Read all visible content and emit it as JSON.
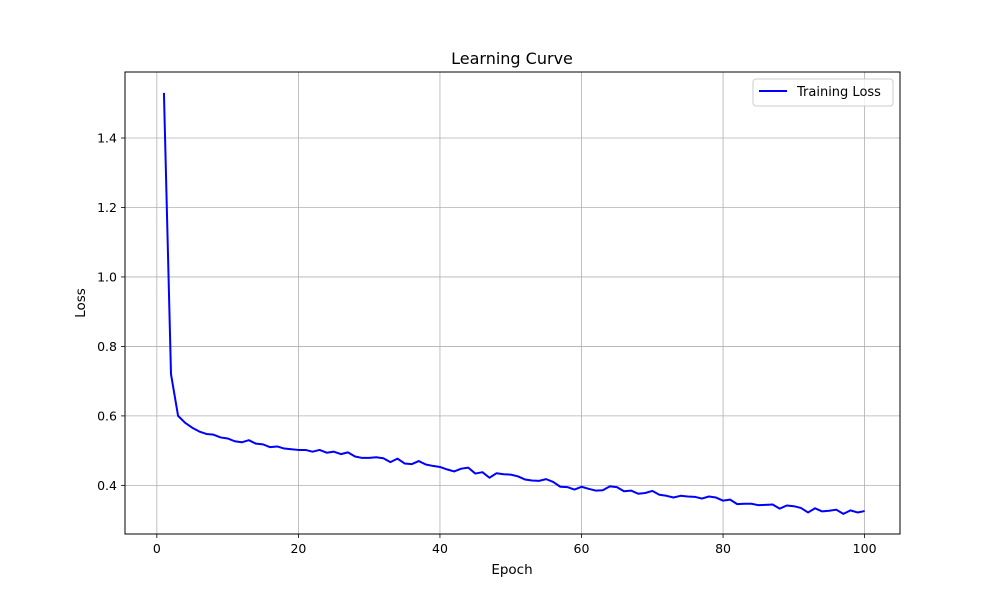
{
  "chart_data": {
    "type": "line",
    "title": "Learning Curve",
    "xlabel": "Epoch",
    "ylabel": "Loss",
    "xlim": [
      -4.5,
      105
    ],
    "ylim": [
      0.26,
      1.59
    ],
    "xticks": [
      0,
      20,
      40,
      60,
      80,
      100
    ],
    "yticks": [
      0.4,
      0.6,
      0.8,
      1.0,
      1.2,
      1.4
    ],
    "xtick_labels": [
      "0",
      "20",
      "40",
      "60",
      "80",
      "100"
    ],
    "ytick_labels": [
      "0.4",
      "0.6",
      "0.8",
      "1.0",
      "1.2",
      "1.4"
    ],
    "grid": true,
    "legend_position": "top-right",
    "series": [
      {
        "name": "Training Loss",
        "color": "#0000ff",
        "x": [
          1,
          2,
          3,
          4,
          5,
          6,
          7,
          8,
          9,
          10,
          11,
          12,
          13,
          14,
          15,
          16,
          17,
          18,
          19,
          20,
          21,
          22,
          23,
          24,
          25,
          26,
          27,
          28,
          29,
          30,
          31,
          32,
          33,
          34,
          35,
          36,
          37,
          38,
          39,
          40,
          41,
          42,
          43,
          44,
          45,
          46,
          47,
          48,
          49,
          50,
          51,
          52,
          53,
          54,
          55,
          56,
          57,
          58,
          59,
          60,
          61,
          62,
          63,
          64,
          65,
          66,
          67,
          68,
          69,
          70,
          71,
          72,
          73,
          74,
          75,
          76,
          77,
          78,
          79,
          80,
          81,
          82,
          83,
          84,
          85,
          86,
          87,
          88,
          89,
          90,
          91,
          92,
          93,
          94,
          95,
          96,
          97,
          98,
          99,
          100
        ],
        "values": [
          1.53,
          0.72,
          0.6,
          0.58,
          0.566,
          0.555,
          0.548,
          0.546,
          0.538,
          0.535,
          0.527,
          0.524,
          0.53,
          0.52,
          0.518,
          0.51,
          0.512,
          0.506,
          0.504,
          0.502,
          0.502,
          0.497,
          0.502,
          0.494,
          0.497,
          0.49,
          0.495,
          0.483,
          0.479,
          0.479,
          0.481,
          0.478,
          0.467,
          0.477,
          0.463,
          0.461,
          0.47,
          0.46,
          0.456,
          0.453,
          0.446,
          0.44,
          0.448,
          0.451,
          0.434,
          0.438,
          0.422,
          0.435,
          0.432,
          0.431,
          0.426,
          0.417,
          0.414,
          0.413,
          0.418,
          0.41,
          0.396,
          0.395,
          0.388,
          0.396,
          0.39,
          0.385,
          0.386,
          0.397,
          0.395,
          0.383,
          0.385,
          0.376,
          0.378,
          0.384,
          0.373,
          0.37,
          0.365,
          0.37,
          0.368,
          0.367,
          0.362,
          0.368,
          0.365,
          0.356,
          0.359,
          0.346,
          0.347,
          0.347,
          0.343,
          0.344,
          0.345,
          0.333,
          0.342,
          0.34,
          0.335,
          0.322,
          0.334,
          0.325,
          0.327,
          0.33,
          0.318,
          0.328,
          0.322,
          0.326
        ]
      }
    ]
  }
}
